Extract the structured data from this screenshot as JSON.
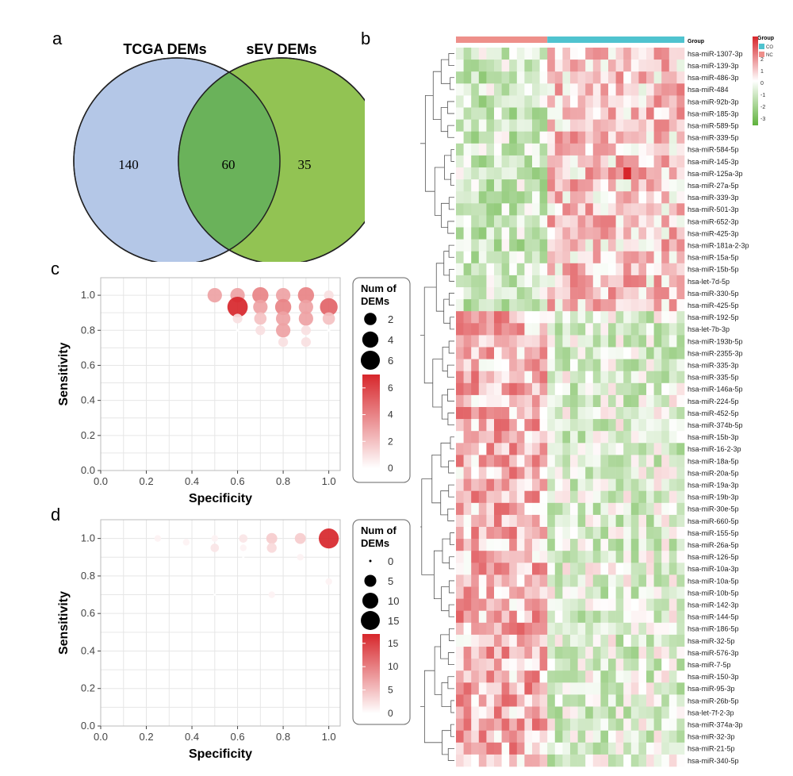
{
  "panels": {
    "a": "a",
    "b": "b",
    "c": "c",
    "d": "d"
  },
  "venn": {
    "left_label": "TCGA DEMs",
    "right_label": "sEV DEMs",
    "left_only": "140",
    "overlap": "60",
    "right_only": "35",
    "colors": {
      "left": "#b4c7e7",
      "right": "#92c353",
      "overlap": "#6ab25a"
    }
  },
  "chart_data": [
    {
      "panel": "c",
      "type": "scatter",
      "xlabel": "Specificity",
      "ylabel": "Sensitivity",
      "xlim": [
        0,
        1.05
      ],
      "ylim": [
        0,
        1.1
      ],
      "xticks": [
        "0.0",
        "0.2",
        "0.4",
        "0.6",
        "0.8",
        "1.0"
      ],
      "yticks": [
        "0.0",
        "0.2",
        "0.4",
        "0.6",
        "0.8",
        "1.0"
      ],
      "grid": true,
      "legend_size": {
        "title": "Num of DEMs",
        "values": [
          2,
          4,
          6
        ]
      },
      "legend_color": {
        "ticks": [
          "6",
          "4",
          "2",
          "0"
        ],
        "range": [
          0,
          7
        ],
        "low": "#ffffff",
        "high": "#d7262b"
      },
      "points": [
        {
          "x": 0.5,
          "y": 1.0,
          "n": 3
        },
        {
          "x": 0.6,
          "y": 1.0,
          "n": 3
        },
        {
          "x": 0.7,
          "y": 1.0,
          "n": 4
        },
        {
          "x": 0.8,
          "y": 1.0,
          "n": 3
        },
        {
          "x": 0.9,
          "y": 1.0,
          "n": 4
        },
        {
          "x": 1.0,
          "y": 1.0,
          "n": 1
        },
        {
          "x": 0.6,
          "y": 0.933,
          "n": 7
        },
        {
          "x": 0.7,
          "y": 0.933,
          "n": 3
        },
        {
          "x": 0.8,
          "y": 0.933,
          "n": 4
        },
        {
          "x": 0.9,
          "y": 0.933,
          "n": 3
        },
        {
          "x": 1.0,
          "y": 0.933,
          "n": 5
        },
        {
          "x": 0.7,
          "y": 0.867,
          "n": 2
        },
        {
          "x": 0.8,
          "y": 0.867,
          "n": 3
        },
        {
          "x": 0.9,
          "y": 0.867,
          "n": 3
        },
        {
          "x": 1.0,
          "y": 0.867,
          "n": 2
        },
        {
          "x": 0.6,
          "y": 0.867,
          "n": 1
        },
        {
          "x": 0.8,
          "y": 0.8,
          "n": 3
        },
        {
          "x": 0.9,
          "y": 0.8,
          "n": 1
        },
        {
          "x": 0.7,
          "y": 0.8,
          "n": 1
        },
        {
          "x": 0.8,
          "y": 0.733,
          "n": 1
        },
        {
          "x": 0.9,
          "y": 0.733,
          "n": 1
        },
        {
          "x": 0.6,
          "y": 0.8,
          "n": 0
        },
        {
          "x": 1.0,
          "y": 0.8,
          "n": 0
        }
      ]
    },
    {
      "panel": "d",
      "type": "scatter",
      "xlabel": "Specificity",
      "ylabel": "Sensitivity",
      "xlim": [
        0,
        1.05
      ],
      "ylim": [
        0,
        1.1
      ],
      "xticks": [
        "0.0",
        "0.2",
        "0.4",
        "0.6",
        "0.8",
        "1.0"
      ],
      "yticks": [
        "0.0",
        "0.2",
        "0.4",
        "0.6",
        "0.8",
        "1.0"
      ],
      "grid": true,
      "legend_size": {
        "title": "Num of DEMs",
        "values": [
          0,
          5,
          10,
          15
        ]
      },
      "legend_color": {
        "ticks": [
          "15",
          "10",
          "5",
          "0"
        ],
        "range": [
          0,
          17
        ],
        "low": "#ffffff",
        "high": "#d7262b"
      },
      "points": [
        {
          "x": 1.0,
          "y": 1.0,
          "n": 17
        },
        {
          "x": 0.875,
          "y": 1.0,
          "n": 4
        },
        {
          "x": 0.75,
          "y": 1.0,
          "n": 4
        },
        {
          "x": 0.75,
          "y": 0.95,
          "n": 3
        },
        {
          "x": 0.625,
          "y": 1.0,
          "n": 2
        },
        {
          "x": 0.625,
          "y": 0.95,
          "n": 1
        },
        {
          "x": 0.5,
          "y": 0.95,
          "n": 2
        },
        {
          "x": 0.5,
          "y": 1.0,
          "n": 1
        },
        {
          "x": 0.375,
          "y": 0.98,
          "n": 1
        },
        {
          "x": 0.25,
          "y": 1.0,
          "n": 1
        },
        {
          "x": 0.875,
          "y": 0.9,
          "n": 1
        },
        {
          "x": 0.75,
          "y": 0.7,
          "n": 1
        },
        {
          "x": 0.5,
          "y": 0.7,
          "n": 0
        },
        {
          "x": 1.0,
          "y": 0.77,
          "n": 1
        },
        {
          "x": 0.625,
          "y": 0.9,
          "n": 0
        }
      ]
    },
    {
      "panel": "b",
      "type": "heatmap",
      "group_label": "Group",
      "legend_ticks": [
        "3",
        "2",
        "1",
        "0",
        "-1",
        "-2",
        "-3"
      ],
      "group_legend": [
        {
          "name": "CO",
          "color": "#4fc3cf"
        },
        {
          "name": "NC",
          "color": "#ee8f8a"
        }
      ],
      "column_groups": {
        "NC": 12,
        "CO": 18
      },
      "top_rows": 22,
      "high_color": "#d7262b",
      "low_color": "#5fb23c",
      "rows": [
        "hsa-miR-1307-3p",
        "hsa-miR-139-3p",
        "hsa-miR-486-3p",
        "hsa-miR-484",
        "hsa-miR-92b-3p",
        "hsa-miR-185-3p",
        "hsa-miR-589-5p",
        "hsa-miR-339-5p",
        "hsa-miR-584-5p",
        "hsa-miR-145-3p",
        "hsa-miR-125a-3p",
        "hsa-miR-27a-5p",
        "hsa-miR-339-3p",
        "hsa-miR-501-3p",
        "hsa-miR-652-3p",
        "hsa-miR-425-3p",
        "hsa-miR-181a-2-3p",
        "hsa-miR-15a-5p",
        "hsa-miR-15b-5p",
        "hsa-let-7d-5p",
        "hsa-miR-330-5p",
        "hsa-miR-425-5p",
        "hsa-miR-192-5p",
        "hsa-let-7b-3p",
        "hsa-miR-193b-5p",
        "hsa-miR-2355-3p",
        "hsa-miR-335-3p",
        "hsa-miR-335-5p",
        "hsa-miR-146a-5p",
        "hsa-miR-224-5p",
        "hsa-miR-452-5p",
        "hsa-miR-374b-5p",
        "hsa-miR-15b-3p",
        "hsa-miR-16-2-3p",
        "hsa-miR-18a-5p",
        "hsa-miR-20a-5p",
        "hsa-miR-19a-3p",
        "hsa-miR-19b-3p",
        "hsa-miR-30e-5p",
        "hsa-miR-660-5p",
        "hsa-miR-155-5p",
        "hsa-miR-26a-5p",
        "hsa-miR-126-5p",
        "hsa-miR-10a-3p",
        "hsa-miR-10a-5p",
        "hsa-miR-10b-5p",
        "hsa-miR-142-3p",
        "hsa-miR-144-5p",
        "hsa-miR-186-5p",
        "hsa-miR-32-5p",
        "hsa-miR-576-3p",
        "hsa-miR-7-5p",
        "hsa-miR-150-3p",
        "hsa-miR-95-3p",
        "hsa-miR-26b-5p",
        "hsa-let-7f-2-3p",
        "hsa-miR-374a-3p",
        "hsa-miR-32-3p",
        "hsa-miR-21-5p",
        "hsa-miR-340-5p"
      ]
    }
  ]
}
